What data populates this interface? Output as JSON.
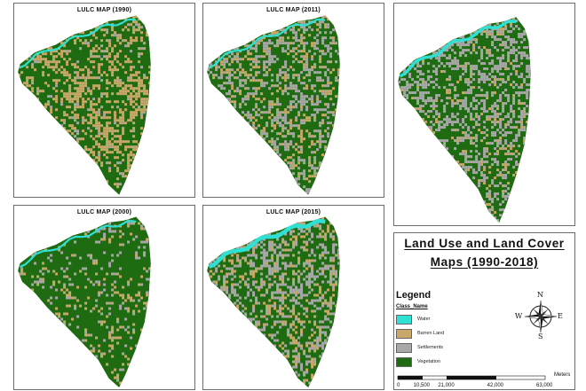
{
  "panels": [
    {
      "id": "p1990",
      "title": "LULC MAP (1990)",
      "seed": 11,
      "weights": {
        "water": 0.01,
        "barren": 0.38,
        "settlements": 0.05,
        "vegetation": 0.56
      }
    },
    {
      "id": "p2011",
      "title": "LULC MAP (2011)",
      "seed": 23,
      "weights": {
        "water": 0.01,
        "barren": 0.18,
        "settlements": 0.24,
        "vegetation": 0.57
      }
    },
    {
      "id": "p2018",
      "title": "",
      "seed": 37,
      "weights": {
        "water": 0.02,
        "barren": 0.08,
        "settlements": 0.32,
        "vegetation": 0.58
      }
    },
    {
      "id": "p2000",
      "title": "LULC MAP (2000)",
      "seed": 49,
      "weights": {
        "water": 0.01,
        "barren": 0.1,
        "settlements": 0.09,
        "vegetation": 0.8
      }
    },
    {
      "id": "p2015",
      "title": "LULC MAP (2015)",
      "seed": 61,
      "weights": {
        "water": 0.03,
        "barren": 0.14,
        "settlements": 0.27,
        "vegetation": 0.56
      }
    }
  ],
  "legend": {
    "main_title_line1": "Land Use and Land Cover",
    "main_title_line2": "Maps (1990-2018)",
    "heading": "Legend",
    "class_name": "Class_Name",
    "items": [
      {
        "label": "Water",
        "color": "#2fe0d4"
      },
      {
        "label": "Barren Land",
        "color": "#c9a86a"
      },
      {
        "label": "Settlements",
        "color": "#a8a8a8"
      },
      {
        "label": "Vegetation",
        "color": "#1f6b12"
      }
    ]
  },
  "compass": {
    "n": "N",
    "s": "S",
    "e": "E",
    "w": "W"
  },
  "scale": {
    "ticks": [
      "0",
      "10,500",
      "21,000",
      "42,000",
      "63,000"
    ],
    "values": [
      0,
      10500,
      21000,
      42000,
      63000
    ],
    "units": "Meters"
  }
}
